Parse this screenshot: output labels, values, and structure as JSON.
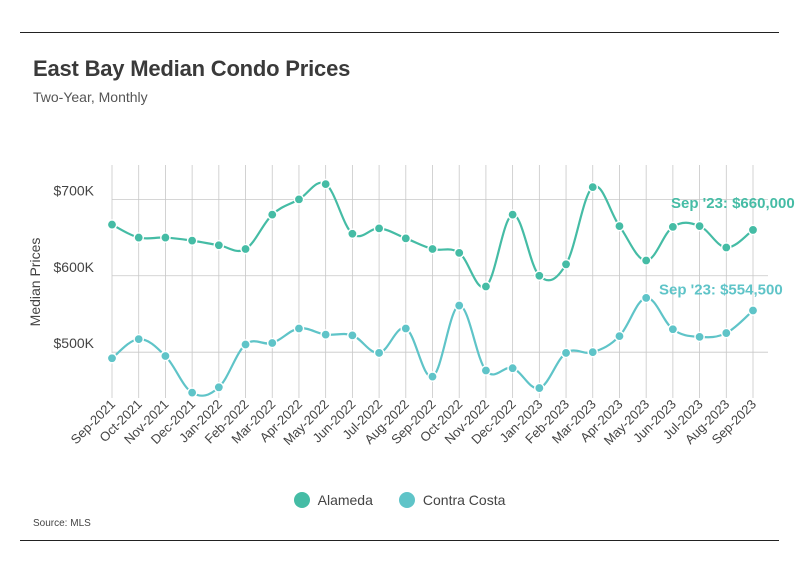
{
  "title": "East Bay Median Condo Prices",
  "subtitle": "Two-Year, Monthly",
  "source": "Source: MLS",
  "chart_data": {
    "type": "line",
    "title": "East Bay Median Condo Prices",
    "subtitle": "Two-Year, Monthly",
    "xlabel": "",
    "ylabel": "Median Prices",
    "ylim": [
      440000,
      745000
    ],
    "yticks": [
      500000,
      600000,
      700000
    ],
    "ytick_labels": [
      "$500K",
      "$600K",
      "$700K"
    ],
    "grid": true,
    "legend_position": "bottom-center",
    "categories": [
      "Sep-2021",
      "Oct-2021",
      "Nov-2021",
      "Dec-2021",
      "Jan-2022",
      "Feb-2022",
      "Mar-2022",
      "Apr-2022",
      "May-2022",
      "Jun-2022",
      "Jul-2022",
      "Aug-2022",
      "Sep-2022",
      "Oct-2022",
      "Nov-2022",
      "Dec-2022",
      "Jan-2023",
      "Feb-2023",
      "Mar-2023",
      "Apr-2023",
      "May-2023",
      "Jun-2023",
      "Jul-2023",
      "Aug-2023",
      "Sep-2023"
    ],
    "series": [
      {
        "name": "Alameda",
        "color": "#45bca5",
        "values": [
          667000,
          650000,
          650000,
          646000,
          640000,
          635000,
          680000,
          700000,
          720000,
          655000,
          662000,
          649000,
          635000,
          630000,
          586000,
          680000,
          600000,
          615000,
          716000,
          665000,
          620000,
          664000,
          665000,
          637000,
          660000
        ],
        "annotation": "Sep '23: $660,000"
      },
      {
        "name": "Contra Costa",
        "color": "#5fc4c8",
        "values": [
          492000,
          517000,
          495000,
          447000,
          454000,
          510000,
          512000,
          531000,
          523000,
          522000,
          499000,
          531000,
          468000,
          561000,
          476000,
          479000,
          453000,
          499000,
          500000,
          521000,
          571000,
          530000,
          520000,
          525000,
          554500
        ],
        "annotation": "Sep '23: $554,500"
      }
    ]
  }
}
